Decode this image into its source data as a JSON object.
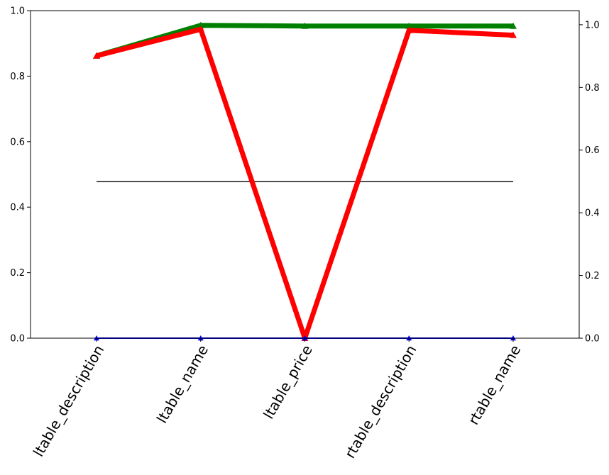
{
  "chart_data": {
    "type": "line",
    "categories": [
      "ltable_description",
      "ltable_name",
      "ltable_price",
      "rtable_description",
      "rtable_name"
    ],
    "left_axis": {
      "ylim": [
        0,
        1.0
      ],
      "ticks": [
        0.0,
        0.2,
        0.4,
        0.6,
        0.8,
        1.0
      ],
      "tick_labels": [
        "0.0",
        "0.2",
        "0.4",
        "0.6",
        "0.8",
        "1.0"
      ]
    },
    "right_axis": {
      "ylim": [
        0,
        1.045
      ],
      "ticks": [
        0.0,
        0.2,
        0.4,
        0.6,
        0.8,
        1.0
      ],
      "tick_labels": [
        "0.0",
        "0.2",
        "0.4",
        "0.6",
        "0.8",
        "1.0"
      ]
    },
    "series": [
      {
        "axis": "left",
        "color": "#008000",
        "marker": "triangle",
        "values": [
          0.862,
          0.955,
          0.953,
          0.953,
          0.953
        ]
      },
      {
        "axis": "left",
        "color": "#ff0000",
        "marker": "triangle",
        "values": [
          0.862,
          0.943,
          0.0,
          0.94,
          0.925
        ]
      },
      {
        "axis": "left",
        "color": "#0000ff",
        "marker": "triangle",
        "values": [
          0.0,
          0.0,
          0.0,
          0.0,
          0.0
        ]
      }
    ],
    "reference_line": {
      "axis": "left",
      "value": 0.478,
      "color": "#000000"
    },
    "grid": false,
    "legend": "none",
    "xtick_rotation": 60
  }
}
